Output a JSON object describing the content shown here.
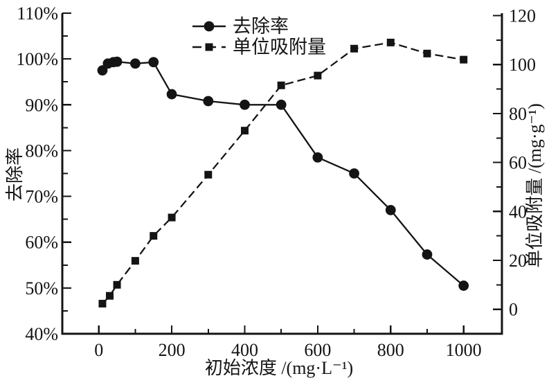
{
  "chart_data": {
    "type": "line",
    "title": "",
    "x_axis": {
      "label": "初始浓度 /(mg·L⁻¹)",
      "tick_labels": [
        "0",
        "200",
        "400",
        "600",
        "800",
        "1000"
      ],
      "tick_values": [
        0,
        200,
        400,
        600,
        800,
        1000
      ],
      "minor_tick_values": [
        100,
        300,
        500,
        700,
        900
      ],
      "range": [
        -100,
        1105
      ]
    },
    "y_left": {
      "label": "去除率",
      "tick_labels": [
        "40%",
        "50%",
        "60%",
        "70%",
        "80%",
        "90%",
        "100%",
        "110%"
      ],
      "tick_values": [
        40,
        50,
        60,
        70,
        80,
        90,
        100,
        110
      ],
      "minor_tick_values": [
        45,
        55,
        65,
        75,
        85,
        95,
        105
      ],
      "range": [
        40,
        110
      ]
    },
    "y_right": {
      "label": "单位吸附量 /(mg·g⁻¹)",
      "tick_labels": [
        "0",
        "20",
        "40",
        "60",
        "80",
        "100",
        "120"
      ],
      "tick_values": [
        0,
        20,
        40,
        60,
        80,
        100,
        120
      ],
      "minor_tick_values": [
        10,
        30,
        50,
        70,
        90,
        110
      ],
      "range": [
        -10,
        121
      ]
    },
    "grid": "off",
    "legend": {
      "position": "top-center",
      "items": [
        {
          "label": "去除率",
          "marker": "circle",
          "line": "solid"
        },
        {
          "label": "单位吸附量",
          "marker": "square",
          "line": "dashed"
        }
      ]
    },
    "series": [
      {
        "name": "去除率",
        "axis": "left",
        "marker": "circle",
        "line": "solid",
        "x": [
          10,
          25,
          40,
          50,
          100,
          150,
          200,
          300,
          400,
          500,
          600,
          700,
          800,
          900,
          1000
        ],
        "y": [
          97.5,
          99.0,
          99.3,
          99.4,
          99.0,
          99.3,
          92.3,
          90.8,
          90.0,
          90.0,
          78.5,
          75.0,
          67.0,
          57.3,
          50.5
        ]
      },
      {
        "name": "单位吸附量",
        "axis": "right",
        "marker": "square",
        "line": "dashed",
        "x": [
          10,
          30,
          50,
          100,
          150,
          200,
          300,
          400,
          500,
          600,
          700,
          800,
          900,
          1000
        ],
        "y": [
          2.3,
          5.5,
          10,
          19.8,
          30,
          37.5,
          55,
          73,
          91.5,
          95.5,
          106.5,
          109,
          104.5,
          102
        ]
      }
    ]
  },
  "colors": {
    "foreground": "#141414",
    "background": "#ffffff"
  }
}
